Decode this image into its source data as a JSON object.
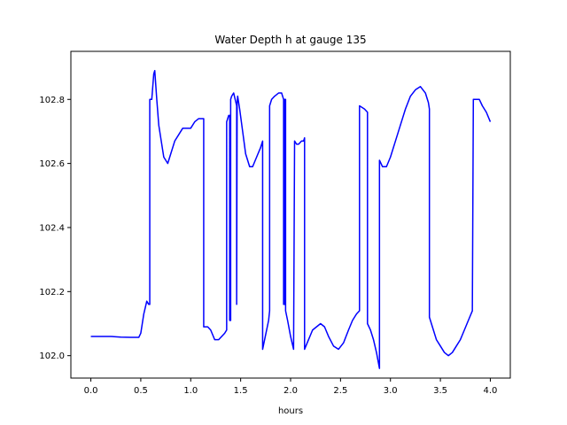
{
  "chart_data": {
    "type": "line",
    "title": "Water Depth h at gauge 135",
    "xlabel": "hours",
    "ylabel": "",
    "xlim": [
      -0.2,
      4.2
    ],
    "ylim": [
      101.93,
      102.95
    ],
    "xticks": [
      0.0,
      0.5,
      1.0,
      1.5,
      2.0,
      2.5,
      3.0,
      3.5,
      4.0
    ],
    "xtick_labels": [
      "0.0",
      "0.5",
      "1.0",
      "1.5",
      "2.0",
      "2.5",
      "3.0",
      "3.5",
      "4.0"
    ],
    "yticks": [
      102.0,
      102.2,
      102.4,
      102.6,
      102.8
    ],
    "ytick_labels": [
      "102.0",
      "102.2",
      "102.4",
      "102.6",
      "102.8"
    ],
    "grid": false,
    "legend": "none",
    "series": [
      {
        "color": "#0000ff",
        "x": [
          0.0,
          0.1,
          0.2,
          0.3,
          0.4,
          0.48,
          0.5,
          0.53,
          0.56,
          0.58,
          0.59,
          0.59,
          0.61,
          0.63,
          0.64,
          0.66,
          0.68,
          0.7,
          0.73,
          0.77,
          0.8,
          0.84,
          0.88,
          0.92,
          0.96,
          1.0,
          1.04,
          1.08,
          1.12,
          1.13,
          1.13,
          1.17,
          1.2,
          1.24,
          1.28,
          1.31,
          1.34,
          1.36,
          1.36,
          1.38,
          1.39,
          1.39,
          1.4,
          1.4,
          1.41,
          1.43,
          1.46,
          1.46,
          1.465,
          1.47,
          1.49,
          1.52,
          1.55,
          1.59,
          1.62,
          1.66,
          1.7,
          1.72,
          1.72,
          1.74,
          1.78,
          1.79,
          1.79,
          1.81,
          1.84,
          1.88,
          1.91,
          1.93,
          1.93,
          1.94,
          1.94,
          1.95,
          1.95,
          1.97,
          2.0,
          2.03,
          2.04,
          2.06,
          2.08,
          2.11,
          2.13,
          2.14,
          2.14,
          2.18,
          2.22,
          2.26,
          2.3,
          2.34,
          2.38,
          2.43,
          2.48,
          2.53,
          2.58,
          2.62,
          2.66,
          2.69,
          2.69,
          2.74,
          2.77,
          2.77,
          2.8,
          2.83,
          2.86,
          2.89,
          2.89,
          2.92,
          2.96,
          3.0,
          3.05,
          3.1,
          3.15,
          3.2,
          3.25,
          3.3,
          3.35,
          3.38,
          3.39,
          3.39,
          3.42,
          3.46,
          3.5,
          3.54,
          3.58,
          3.62,
          3.66,
          3.7,
          3.74,
          3.78,
          3.82,
          3.83,
          3.86,
          3.89,
          3.92,
          3.96,
          4.0
        ],
        "y": [
          102.06,
          102.06,
          102.06,
          102.058,
          102.057,
          102.057,
          102.07,
          102.13,
          102.17,
          102.16,
          102.16,
          102.8,
          102.8,
          102.88,
          102.89,
          102.8,
          102.72,
          102.68,
          102.62,
          102.6,
          102.63,
          102.67,
          102.69,
          102.71,
          102.71,
          102.71,
          102.73,
          102.74,
          102.74,
          102.74,
          102.09,
          102.09,
          102.08,
          102.05,
          102.05,
          102.06,
          102.07,
          102.08,
          102.73,
          102.75,
          102.75,
          102.11,
          102.11,
          102.8,
          102.81,
          102.82,
          102.78,
          102.16,
          102.79,
          102.81,
          102.77,
          102.7,
          102.63,
          102.59,
          102.59,
          102.62,
          102.65,
          102.67,
          102.02,
          102.05,
          102.11,
          102.14,
          102.78,
          102.8,
          102.81,
          102.82,
          102.82,
          102.8,
          102.16,
          102.16,
          102.8,
          102.8,
          102.14,
          102.11,
          102.06,
          102.02,
          102.67,
          102.66,
          102.66,
          102.67,
          102.67,
          102.68,
          102.02,
          102.05,
          102.08,
          102.09,
          102.1,
          102.09,
          102.06,
          102.03,
          102.02,
          102.04,
          102.08,
          102.11,
          102.13,
          102.14,
          102.78,
          102.77,
          102.76,
          102.1,
          102.08,
          102.05,
          102.01,
          101.96,
          102.61,
          102.59,
          102.59,
          102.62,
          102.67,
          102.72,
          102.77,
          102.81,
          102.83,
          102.84,
          102.82,
          102.79,
          102.77,
          102.12,
          102.09,
          102.05,
          102.03,
          102.01,
          102.0,
          102.01,
          102.03,
          102.05,
          102.08,
          102.11,
          102.14,
          102.8,
          102.8,
          102.8,
          102.78,
          102.76,
          102.73
        ]
      }
    ]
  }
}
